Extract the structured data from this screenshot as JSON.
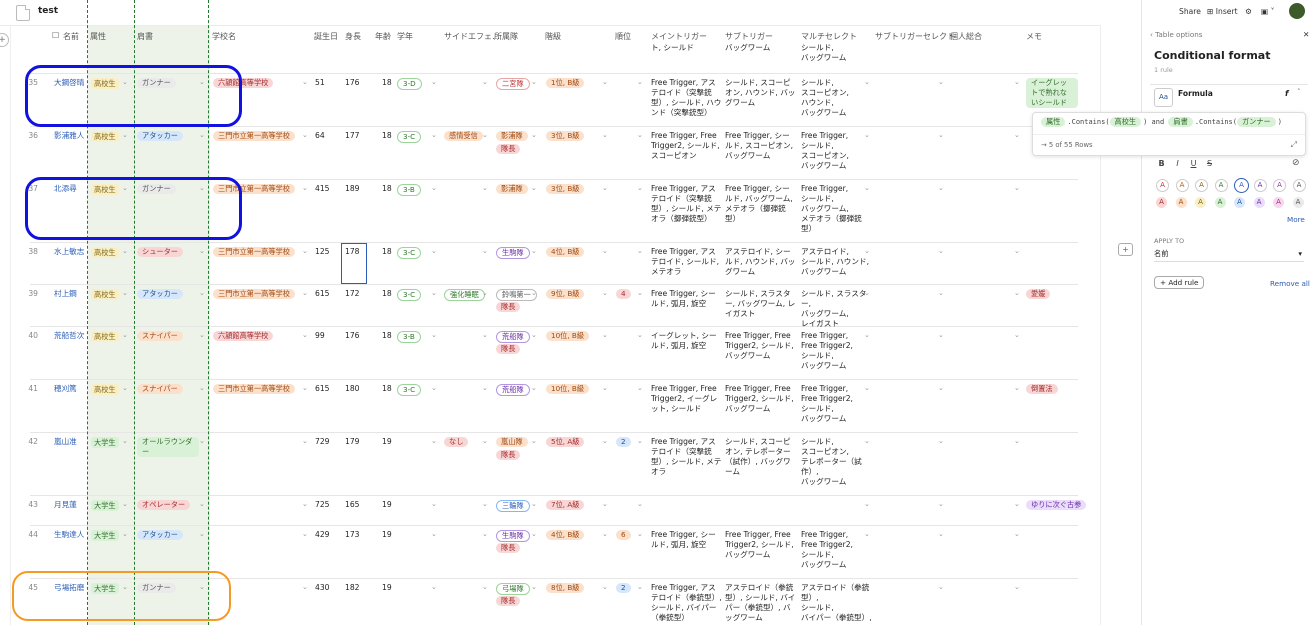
{
  "doc": {
    "title": "test"
  },
  "columns": [
    "名前",
    "属性",
    "肩書",
    "学校名",
    "誕生日",
    "身長",
    "年齢",
    "学年",
    "サイドエフェ…",
    "所属隊",
    "階級",
    "順位",
    "メイントリガー",
    "サブトリガー",
    "マルチセレクト",
    "サブトリガーセレクト",
    "個人総合",
    "メモ"
  ],
  "partial_row": {
    "main": "ト, シールド",
    "sub": "バッグワーム",
    "multi": "シールド,\nバッグワーム"
  },
  "rows": [
    {
      "num": "35",
      "name": "大鋼啓晴",
      "attr": "高校生",
      "title": "ガンナー",
      "school": "六頴館高等学校",
      "bday": "51",
      "height": "176",
      "age": "18",
      "grade": "3-D",
      "side": "",
      "unit": "二宮隊",
      "rank": "1位, B級",
      "order": "",
      "main": "Free Trigger, アステロイド（突撃銃型）, シールド, ハウンド（突撃銃型）",
      "sub": "シールド, スコーピオン, ハウンド, バッグワーム",
      "multi": "シールド,\nスコーピオン,\nハウンド,\nバッグワーム",
      "memo": "イーグレットで熟れないシールド"
    },
    {
      "num": "36",
      "name": "影浦雅人",
      "attr": "高校生",
      "title": "アタッカー",
      "school": "三門市立第一高等学校",
      "bday": "64",
      "height": "177",
      "age": "18",
      "grade": "3-C",
      "side": "感情受信",
      "unit": "影浦隊",
      "leader": "隊長",
      "rank": "3位, B級",
      "order": "",
      "main": "Free Trigger, Free Trigger2, シールド, スコーピオン",
      "sub": "Free Trigger, シールド, スコーピオン, バッグワーム",
      "multi": "Free Trigger,\nシールド,\nスコーピオン,\nバッグワーム",
      "memo": ""
    },
    {
      "num": "37",
      "name": "北添尋",
      "attr": "高校生",
      "title": "ガンナー",
      "school": "三門市立第一高等学校",
      "bday": "415",
      "height": "189",
      "age": "18",
      "grade": "3-B",
      "side": "",
      "unit": "影浦隊",
      "rank": "3位, B級",
      "order": "",
      "main": "Free Trigger, アステロイド（突撃銃型）, シールド, メテオラ（擲弾銃型）",
      "sub": "Free Trigger, シールド, バッグワーム, メテオラ（擲弾銃型）",
      "multi": "Free Trigger,\nシールド,\nバッグワーム,\nメテオラ（擲弾銃型）",
      "memo": ""
    },
    {
      "num": "38",
      "name": "水上敏志",
      "attr": "高校生",
      "title": "シューター",
      "school": "三門市立第一高等学校",
      "bday": "125",
      "height": "178",
      "age": "18",
      "grade": "3-C",
      "side": "",
      "unit": "生駒隊",
      "rank": "4位, B級",
      "order": "",
      "main": "Free Trigger, アステロイド, シールド, メテオラ",
      "sub": "アステロイド, シールド, ハウンド, バッグワーム",
      "multi": "アステロイド,\nシールド, ハウンド,\nバッグワーム",
      "memo": ""
    },
    {
      "num": "39",
      "name": "村上鋼",
      "attr": "高校生",
      "title": "アタッカー",
      "school": "三門市立第一高等学校",
      "bday": "615",
      "height": "172",
      "age": "18",
      "grade": "3-C",
      "side": "強化睡眠",
      "unit": "鈴鳴第一",
      "leader": "隊長",
      "rank": "9位, B級",
      "order": "4",
      "main": "Free Trigger, シールド, 弧月, 旋空",
      "sub": "シールド, スラスター, バッグワーム, レイガスト",
      "multi": "シールド, スラスター,\nバッグワーム,\nレイガスト",
      "memo": "愛媛"
    },
    {
      "num": "40",
      "name": "荒船哲次",
      "attr": "高校生",
      "title": "スナイパー",
      "school": "六頴館高等学校",
      "bday": "99",
      "height": "176",
      "age": "18",
      "grade": "3-B",
      "side": "",
      "unit": "荒船隊",
      "leader": "隊長",
      "rank": "10位, B級",
      "order": "",
      "main": "イーグレット, シールド, 弧月, 旋空",
      "sub": "Free Trigger, Free Trigger2, シールド, バッグワーム",
      "multi": "Free Trigger,\nFree Trigger2,\nシールド,\nバッグワーム",
      "memo": ""
    },
    {
      "num": "41",
      "name": "穂刈篤",
      "attr": "高校生",
      "title": "スナイパー",
      "school": "三門市立第一高等学校",
      "bday": "615",
      "height": "180",
      "age": "18",
      "grade": "3-C",
      "side": "",
      "unit": "荒船隊",
      "rank": "10位, B級",
      "order": "",
      "main": "Free Trigger, Free Trigger2, イーグレット, シールド",
      "sub": "Free Trigger, Free Trigger2, シールド, バッグワーム",
      "multi": "Free Trigger,\nFree Trigger2,\nシールド,\nバッグワーム",
      "memo": "倒置法"
    },
    {
      "num": "42",
      "name": "嵐山准",
      "attr": "大学生",
      "title": "オールラウンダー",
      "school": "",
      "bday": "729",
      "height": "179",
      "age": "19",
      "grade": "",
      "side": "なし",
      "unit": "嵐山隊",
      "leader": "隊長",
      "rank": "5位, A級",
      "order": "2",
      "main": "Free Trigger, アステロイド（突撃銃型）, シールド, メテオラ",
      "sub": "シールド, スコーピオン, テレポーター（試作）, バッグワーム",
      "multi": "シールド,\nスコーピオン,\nテレポーター（試作）,\nバッグワーム",
      "memo": ""
    },
    {
      "num": "43",
      "name": "月見蓮",
      "attr": "大学生",
      "title": "オペレーター",
      "school": "",
      "bday": "725",
      "height": "165",
      "age": "19",
      "grade": "",
      "side": "",
      "unit": "三輪隊",
      "rank": "7位, A級",
      "order": "",
      "main": "",
      "sub": "",
      "multi": "",
      "memo": "ゆりに次ぐ古参"
    },
    {
      "num": "44",
      "name": "生駒達人",
      "attr": "大学生",
      "title": "アタッカー",
      "school": "",
      "bday": "429",
      "height": "173",
      "age": "19",
      "grade": "",
      "side": "",
      "unit": "生駒隊",
      "leader": "隊長",
      "rank": "4位, B級",
      "order": "6",
      "main": "Free Trigger, シールド, 弧月, 旋空",
      "sub": "Free Trigger, Free Trigger2, シールド, バッグワーム",
      "multi": "Free Trigger,\nFree Trigger2,\nシールド,\nバッグワーム",
      "memo": ""
    },
    {
      "num": "45",
      "name": "弓場拓磨",
      "attr": "大学生",
      "title": "ガンナー",
      "school": "",
      "bday": "430",
      "height": "182",
      "age": "19",
      "grade": "",
      "side": "",
      "unit": "弓場隊",
      "leader": "隊長",
      "rank": "8位, B級",
      "order": "2",
      "main": "Free Trigger, アステロイド（拳銃型）, シールド, バイパー（拳銃型）",
      "sub": "アステロイド（拳銃型）, シールド, バイパー（拳銃型）, バッグワーム",
      "multi": "アステロイド（拳銃型）,\nシールド,\nバイパー（拳銃型）,",
      "memo": ""
    }
  ],
  "panel": {
    "share": "Share",
    "insert": "Insert",
    "breadcrumb": "Table options",
    "title": "Conditional format",
    "subtitle": "1 rule",
    "rule_type": "Formula",
    "aa": "Aa",
    "formula": {
      "col1": "属性",
      "contains1": ".Contains(",
      "val1": "高校生",
      "and": ") and",
      "col2": "肩書",
      "contains2": ".Contains(",
      "val2": "ガンナー",
      "close": ")"
    },
    "match_count": "5 of 55 Rows",
    "more": "More",
    "apply_to_label": "APPLY TO",
    "apply_to_value": "名前",
    "add_rule": "Add rule",
    "remove_all": "Remove all"
  },
  "colors": {
    "highlight_blue": "#1111e0",
    "highlight_orange": "#f59a22",
    "guide_green": "#1f7a2a"
  }
}
